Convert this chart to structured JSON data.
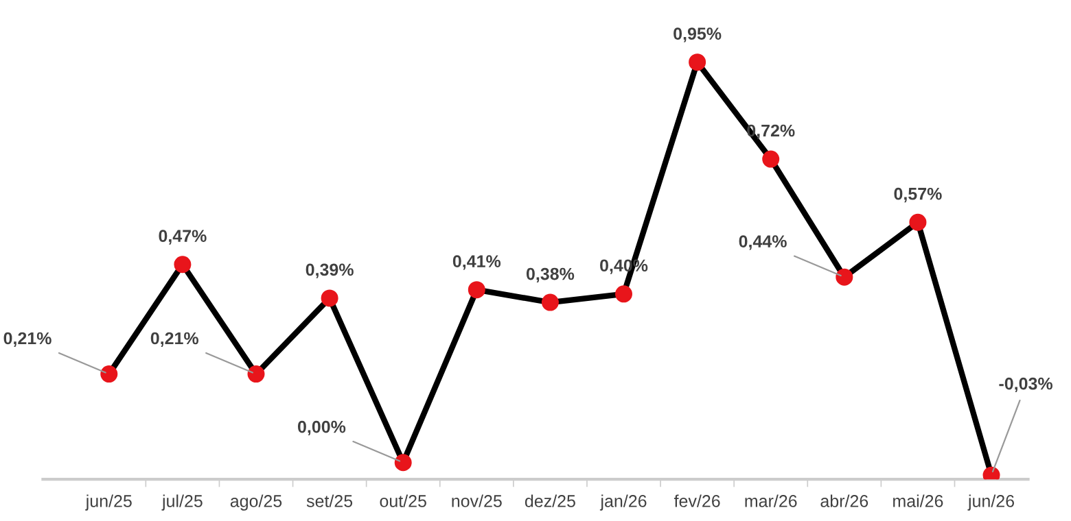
{
  "chart_data": {
    "type": "line",
    "categories": [
      "jun/25",
      "jul/25",
      "ago/25",
      "set/25",
      "out/25",
      "nov/25",
      "dez/25",
      "jan/26",
      "fev/26",
      "mar/26",
      "abr/26",
      "mai/26",
      "jun/26"
    ],
    "series": [
      {
        "color": "#000000",
        "colors": [
          "#e8151b",
          "#e8151b",
          "#e8151b",
          "#e8151b",
          "#e8151b",
          "#e8151b",
          "#e8151b",
          "#e8151b",
          "#e8151b",
          "#e8151b",
          "#e8151b",
          "#e8151b",
          "#e8151b"
        ],
        "values": [
          0.21,
          0.47,
          0.21,
          0.39,
          0.0,
          0.41,
          0.38,
          0.4,
          0.95,
          0.72,
          0.44,
          0.57,
          -0.03
        ],
        "value_labels": [
          "0,21%",
          "0,47%",
          "0,21%",
          "0,39%",
          "0,00%",
          "0,41%",
          "0,38%",
          "0,40%",
          "0,95%",
          "0,72%",
          "0,44%",
          "0,57%",
          "-0,03%"
        ]
      }
    ],
    "marker": "circle",
    "grid": false,
    "tick_labels": "x"
  }
}
